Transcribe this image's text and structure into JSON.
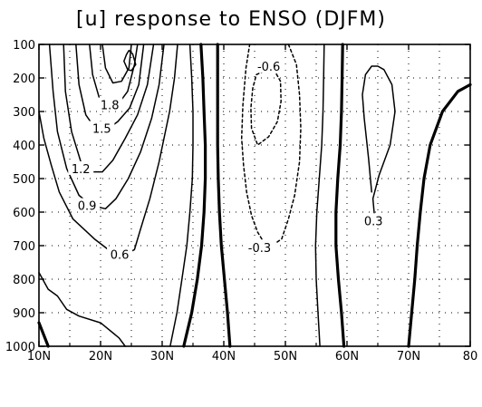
{
  "chart_data": {
    "type": "contour",
    "title": "[u] response to ENSO (DJFM)",
    "x_ticks": [
      "10N",
      "20N",
      "30N",
      "40N",
      "50N",
      "60N",
      "70N",
      "80"
    ],
    "x_values": [
      10,
      20,
      30,
      40,
      50,
      60,
      70,
      80
    ],
    "y_ticks": [
      "100",
      "200",
      "300",
      "400",
      "500",
      "600",
      "700",
      "800",
      "900",
      "1000"
    ],
    "y_values": [
      100,
      200,
      300,
      400,
      500,
      600,
      700,
      800,
      900,
      1000
    ],
    "xlim": [
      10,
      80
    ],
    "ylim": [
      100,
      1000
    ],
    "y_inverted": true,
    "grid": true,
    "contour_interval": 0.3,
    "contours": [
      {
        "value": 0.3,
        "style": "solid",
        "points": [
          [
            64.5,
            620
          ],
          [
            64.2,
            560
          ],
          [
            65.2,
            490
          ],
          [
            67,
            400
          ],
          [
            67.8,
            300
          ],
          [
            67.3,
            220
          ],
          [
            66,
            175
          ],
          [
            65,
            165
          ],
          [
            64,
            165
          ],
          [
            63,
            190
          ],
          [
            62.5,
            250
          ],
          [
            62.8,
            320
          ],
          [
            63.5,
            440
          ],
          [
            64,
            540
          ]
        ]
      },
      {
        "value": 0.0,
        "style": "thick",
        "points": [
          [
            10,
            930
          ],
          [
            11.5,
            1000
          ]
        ]
      },
      {
        "value": 0.0,
        "style": "thick",
        "points": [
          [
            33.5,
            1000
          ],
          [
            34.8,
            900
          ],
          [
            35.7,
            800
          ],
          [
            36.4,
            700
          ],
          [
            36.8,
            600
          ],
          [
            37,
            500
          ],
          [
            37,
            400
          ],
          [
            36.8,
            300
          ],
          [
            36.6,
            200
          ],
          [
            36.3,
            100
          ]
        ]
      },
      {
        "value": 0.0,
        "style": "thick",
        "points": [
          [
            41,
            1000
          ],
          [
            40.6,
            900
          ],
          [
            40.1,
            800
          ],
          [
            39.6,
            700
          ],
          [
            39.3,
            600
          ],
          [
            39.1,
            500
          ],
          [
            39,
            400
          ],
          [
            39,
            300
          ],
          [
            39,
            200
          ],
          [
            39,
            100
          ]
        ]
      },
      {
        "value": 0.0,
        "style": "thick",
        "points": [
          [
            59.5,
            1000
          ],
          [
            59.1,
            900
          ],
          [
            58.6,
            800
          ],
          [
            58.2,
            700
          ],
          [
            58.2,
            600
          ],
          [
            58.5,
            500
          ],
          [
            58.9,
            400
          ],
          [
            59.1,
            300
          ],
          [
            59.2,
            200
          ],
          [
            59.3,
            100
          ]
        ]
      },
      {
        "value": 0.0,
        "style": "thick",
        "points": [
          [
            70,
            1000
          ],
          [
            70.5,
            900
          ],
          [
            71,
            800
          ],
          [
            71.4,
            700
          ],
          [
            71.9,
            600
          ],
          [
            72.5,
            500
          ],
          [
            73.5,
            400
          ],
          [
            75.5,
            300
          ],
          [
            78,
            240
          ],
          [
            80,
            220
          ]
        ]
      },
      {
        "value": 0.3,
        "style": "solid",
        "points": [
          [
            10,
            780
          ],
          [
            11.5,
            830
          ],
          [
            13,
            850
          ],
          [
            14.5,
            890
          ],
          [
            16.5,
            910
          ],
          [
            20,
            930
          ],
          [
            23,
            975
          ],
          [
            24,
            1000
          ]
        ]
      },
      {
        "value": 0.3,
        "style": "solid",
        "points": [
          [
            31.3,
            1000
          ],
          [
            32.4,
            900
          ],
          [
            33.2,
            800
          ],
          [
            34,
            700
          ],
          [
            34.5,
            600
          ],
          [
            34.9,
            500
          ],
          [
            35,
            400
          ],
          [
            35,
            300
          ],
          [
            34.8,
            200
          ],
          [
            34.5,
            100
          ]
        ]
      },
      {
        "value": 0.3,
        "style": "solid",
        "points": [
          [
            55.6,
            1000
          ],
          [
            55.3,
            900
          ],
          [
            55,
            800
          ],
          [
            54.9,
            700
          ],
          [
            55.1,
            600
          ],
          [
            55.5,
            500
          ],
          [
            55.9,
            400
          ],
          [
            56.1,
            300
          ],
          [
            56.2,
            200
          ],
          [
            56.3,
            100
          ]
        ]
      },
      {
        "value": 0.6,
        "style": "solid",
        "points": [
          [
            10,
            300
          ],
          [
            10.8,
            380
          ],
          [
            12,
            460
          ],
          [
            13.3,
            540
          ],
          [
            15.5,
            620
          ],
          [
            19,
            680
          ],
          [
            21.5,
            715
          ],
          [
            24,
            725
          ],
          [
            25.5,
            712
          ],
          [
            26.5,
            650
          ],
          [
            28,
            560
          ],
          [
            29.5,
            450
          ],
          [
            31.2,
            300
          ],
          [
            32,
            200
          ],
          [
            32.5,
            100
          ]
        ]
      },
      {
        "value": 0.9,
        "style": "solid",
        "points": [
          [
            11.7,
            100
          ],
          [
            12.3,
            240
          ],
          [
            13,
            360
          ],
          [
            14.5,
            470
          ],
          [
            16.5,
            550
          ],
          [
            18.5,
            580
          ],
          [
            20.8,
            590
          ],
          [
            22.5,
            560
          ],
          [
            24.5,
            500
          ],
          [
            26.5,
            420
          ],
          [
            28.3,
            320
          ],
          [
            29.5,
            220
          ],
          [
            30.3,
            100
          ]
        ]
      },
      {
        "value": 1.2,
        "style": "solid",
        "points": [
          [
            14,
            100
          ],
          [
            14.3,
            240
          ],
          [
            15.3,
            360
          ],
          [
            16.8,
            450
          ],
          [
            18.5,
            480
          ],
          [
            20.3,
            480
          ],
          [
            22,
            445
          ],
          [
            24,
            380
          ],
          [
            26,
            310
          ],
          [
            27.6,
            220
          ],
          [
            28.6,
            100
          ]
        ]
      },
      {
        "value": 1.5,
        "style": "solid",
        "points": [
          [
            16,
            100
          ],
          [
            16.5,
            220
          ],
          [
            17.6,
            310
          ],
          [
            19.3,
            355
          ],
          [
            21,
            355
          ],
          [
            22.8,
            330
          ],
          [
            24.7,
            290
          ],
          [
            26.2,
            220
          ],
          [
            27,
            100
          ]
        ]
      },
      {
        "value": 1.8,
        "style": "solid",
        "points": [
          [
            18.2,
            100
          ],
          [
            18.7,
            190
          ],
          [
            19.8,
            260
          ],
          [
            21.3,
            290
          ],
          [
            22.8,
            280
          ],
          [
            24.4,
            240
          ],
          [
            25.5,
            160
          ],
          [
            26,
            100
          ]
        ]
      },
      {
        "value": 2.1,
        "style": "solid",
        "points": [
          [
            20.3,
            100
          ],
          [
            20.8,
            170
          ],
          [
            22,
            215
          ],
          [
            23.4,
            210
          ],
          [
            24.6,
            170
          ],
          [
            25,
            100
          ]
        ]
      },
      {
        "value": 2.4,
        "style": "solid",
        "points": [
          [
            24.2,
            130
          ],
          [
            23.8,
            150
          ],
          [
            24.4,
            175
          ],
          [
            25,
            178
          ],
          [
            25.7,
            160
          ],
          [
            25.2,
            128
          ],
          [
            24.6,
            118
          ],
          [
            24.2,
            130
          ]
        ]
      },
      {
        "value": -0.3,
        "style": "dashed",
        "points": [
          [
            50.5,
            100
          ],
          [
            51.8,
            160
          ],
          [
            52.3,
            250
          ],
          [
            52.5,
            350
          ],
          [
            52.3,
            450
          ],
          [
            51.5,
            550
          ],
          [
            50.5,
            620
          ],
          [
            49.4,
            680
          ],
          [
            47.8,
            700
          ],
          [
            46.5,
            690
          ],
          [
            45.5,
            660
          ],
          [
            44.5,
            610
          ],
          [
            43.7,
            540
          ],
          [
            43.2,
            460
          ],
          [
            42.9,
            380
          ],
          [
            43.1,
            280
          ],
          [
            43.6,
            170
          ],
          [
            44.2,
            100
          ]
        ]
      },
      {
        "value": -0.6,
        "style": "dashed",
        "points": [
          [
            46.5,
            180
          ],
          [
            45.3,
            190
          ],
          [
            44.7,
            230
          ],
          [
            44.4,
            290
          ],
          [
            44.5,
            350
          ],
          [
            45.5,
            400
          ],
          [
            47.3,
            375
          ],
          [
            48.7,
            330
          ],
          [
            49.3,
            270
          ],
          [
            49.2,
            210
          ],
          [
            48.3,
            180
          ],
          [
            47.5,
            165
          ],
          [
            46.5,
            180
          ]
        ]
      }
    ],
    "contour_labels": [
      {
        "text": "1.8",
        "x": 21.5,
        "y": 280
      },
      {
        "text": "1.5",
        "x": 20.2,
        "y": 350
      },
      {
        "text": "1.2",
        "x": 16.8,
        "y": 470
      },
      {
        "text": "0.9",
        "x": 17.8,
        "y": 580
      },
      {
        "text": "0.6",
        "x": 23.1,
        "y": 725
      },
      {
        "text": "-0.6",
        "x": 47.3,
        "y": 165
      },
      {
        "text": "-0.3",
        "x": 45.8,
        "y": 705
      },
      {
        "text": "0.3",
        "x": 64.3,
        "y": 625
      }
    ]
  }
}
